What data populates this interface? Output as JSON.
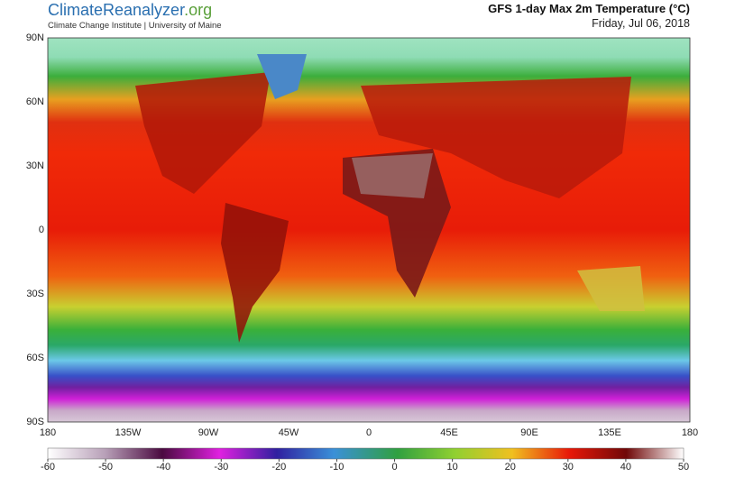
{
  "header": {
    "logo_main": "ClimateReanalyzer",
    "logo_suffix": ".org",
    "affiliation": "Climate Change Institute | University of Maine",
    "title": "GFS 1-day Max 2m Temperature (°C)",
    "date": "Friday, Jul 06, 2018"
  },
  "map": {
    "lat_labels": [
      "90N",
      "60N",
      "30N",
      "0",
      "30S",
      "60S",
      "90S"
    ],
    "lon_labels": [
      "180",
      "135W",
      "90W",
      "45W",
      "0",
      "45E",
      "90E",
      "135E",
      "180"
    ]
  },
  "colorbar": {
    "lim": [
      -60,
      50
    ],
    "ticks": [
      -60,
      -50,
      -40,
      -30,
      -20,
      -10,
      0,
      10,
      20,
      30,
      40,
      50
    ]
  }
}
